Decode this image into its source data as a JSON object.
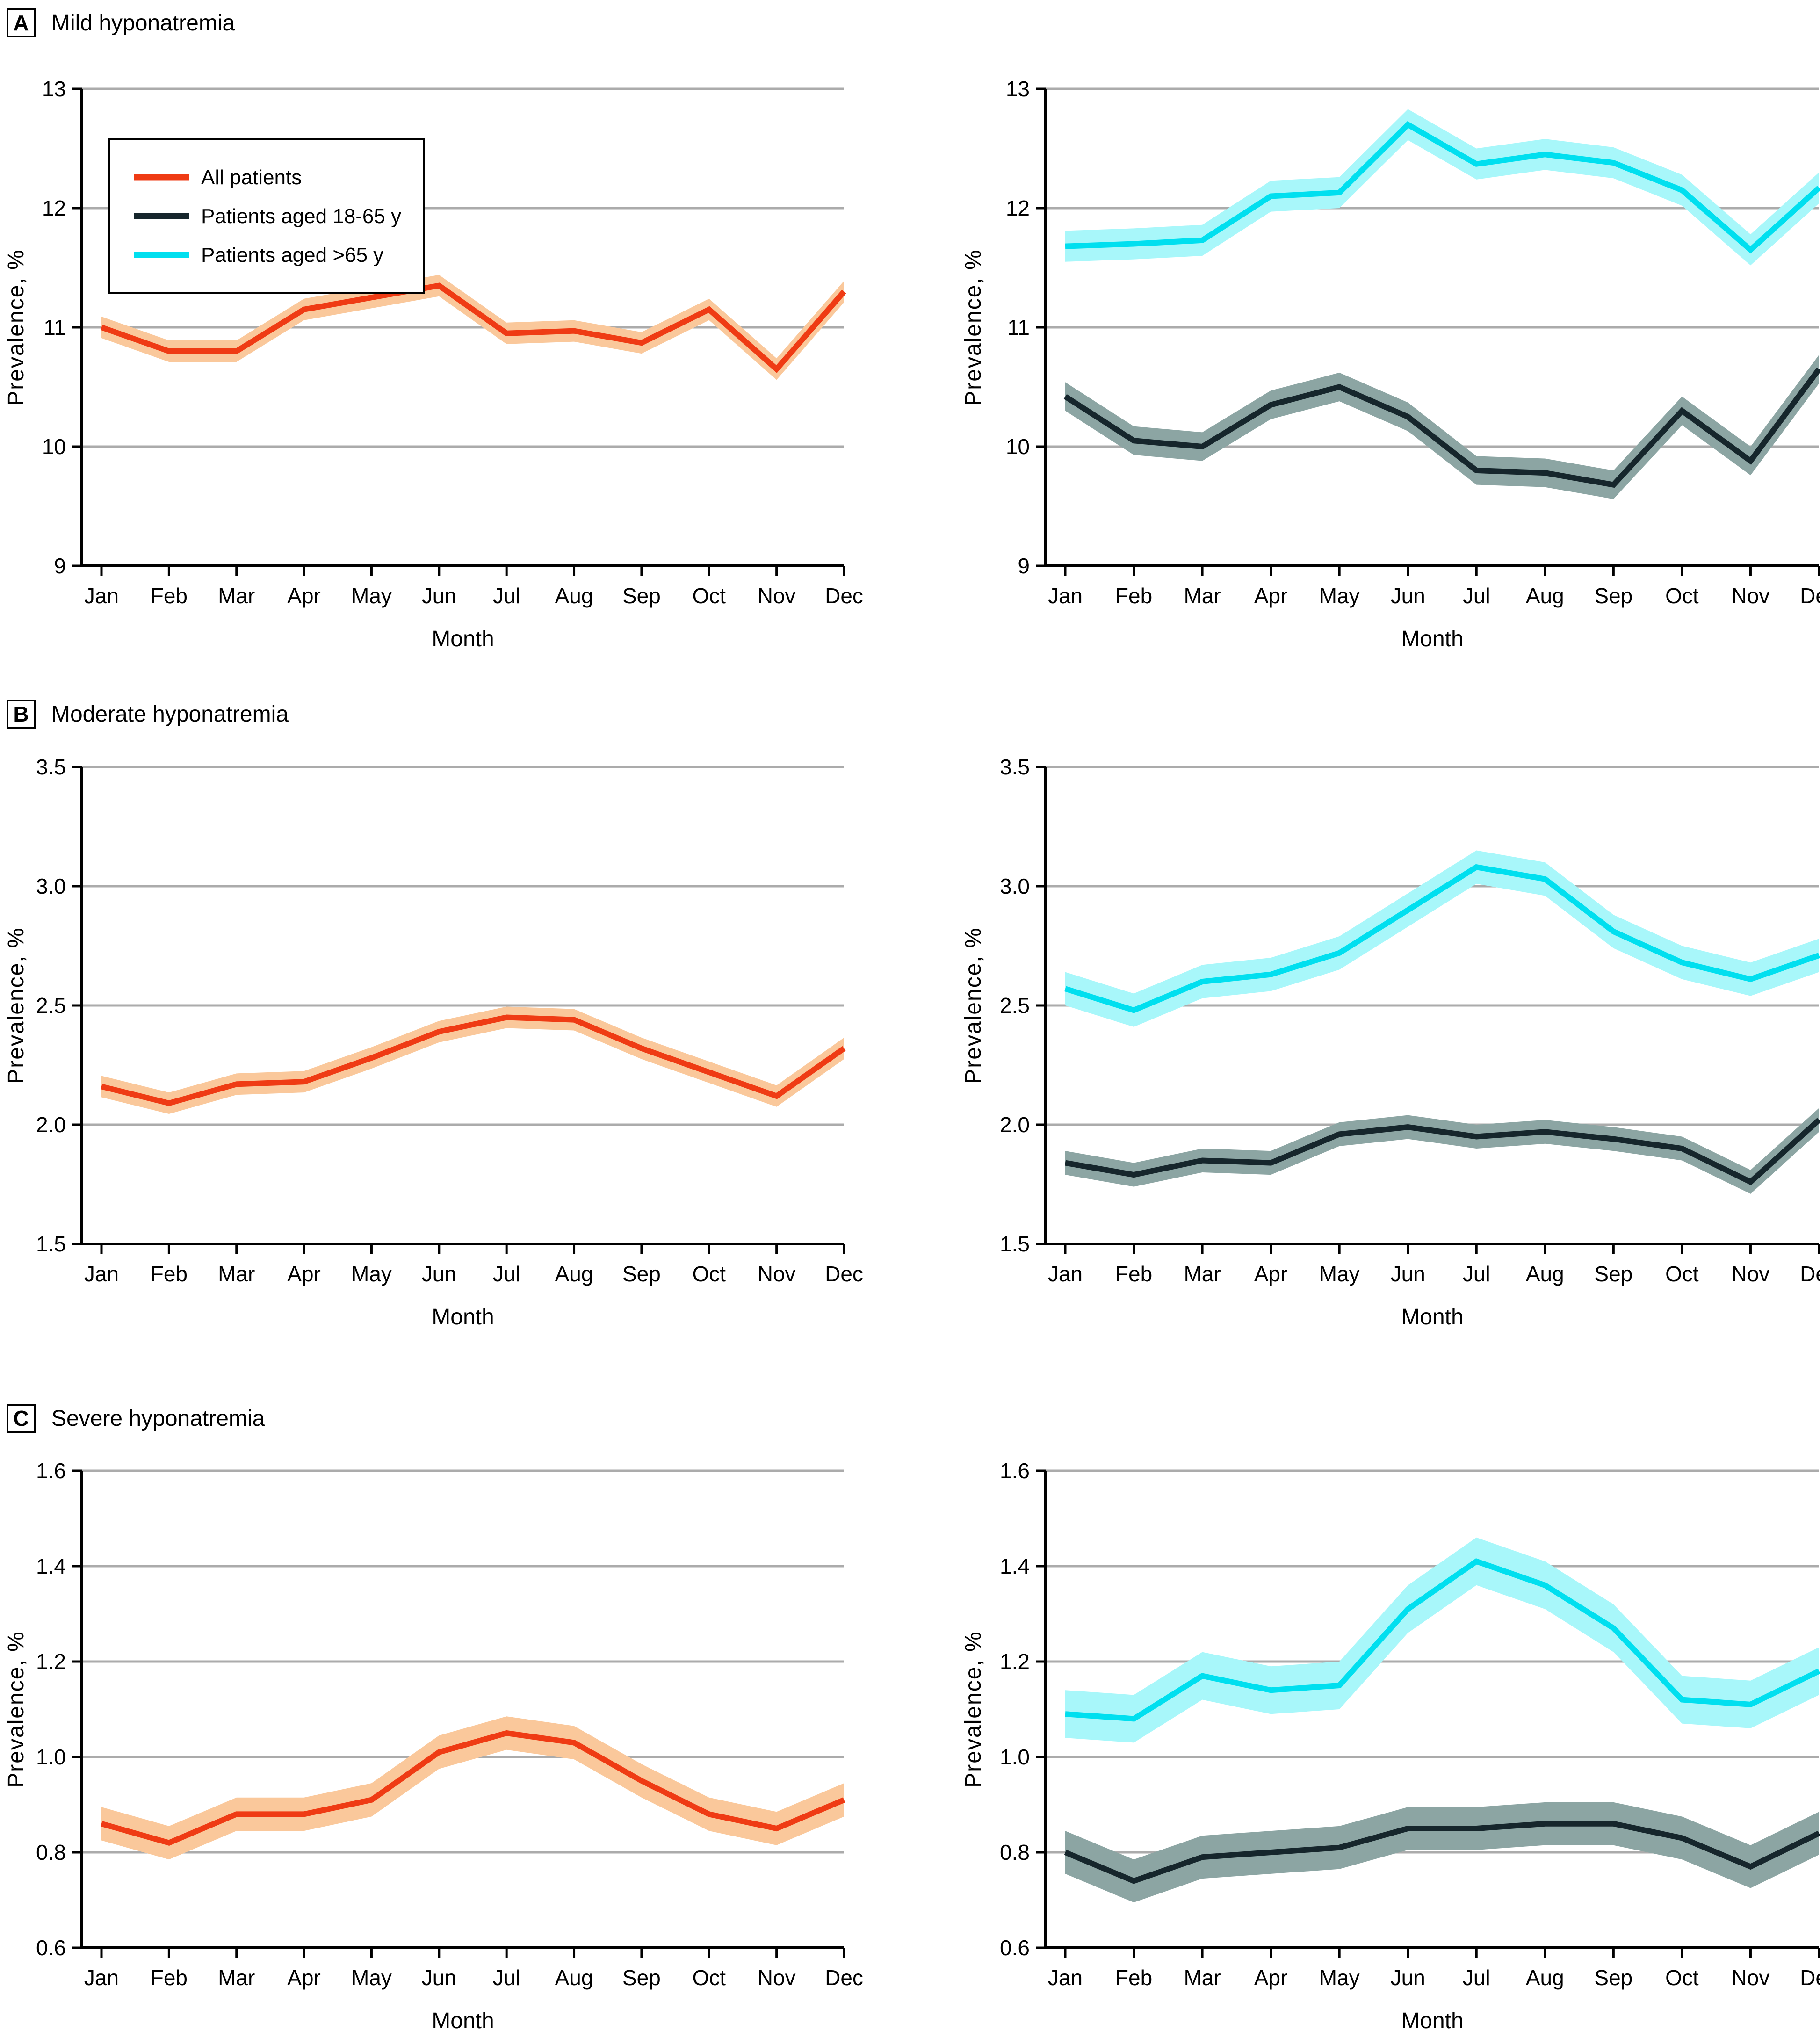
{
  "figure": {
    "panels": [
      {
        "letter": "A",
        "title": "Mild hyponatremia"
      },
      {
        "letter": "B",
        "title": "Moderate hyponatremia"
      },
      {
        "letter": "C",
        "title": "Severe hyponatremia"
      }
    ],
    "legend": {
      "items": [
        {
          "label": "All patients",
          "color": "#EF3B14"
        },
        {
          "label": "Patients aged 18-65 y",
          "color": "#16262C"
        },
        {
          "label": "Patients aged >65 y",
          "color": "#00DFEF"
        }
      ]
    },
    "colors": {
      "all_patients_line": "#EF3B14",
      "all_patients_band": "#FAC89B",
      "aged_18_65_line": "#16262C",
      "aged_18_65_band": "#8CA5A3",
      "aged_over_65_line": "#00DFEF",
      "aged_over_65_band": "#A8F7FA",
      "gridline": "#ABABAB",
      "axis": "#000000"
    }
  },
  "chart_data": [
    {
      "id": "mild-all-patients",
      "panel": "A",
      "position": "left",
      "type": "line",
      "title": "Mild hyponatremia",
      "xlabel": "Month",
      "ylabel": "Prevalence, %",
      "categories": [
        "Jan",
        "Feb",
        "Mar",
        "Apr",
        "May",
        "Jun",
        "Jul",
        "Aug",
        "Sep",
        "Oct",
        "Nov",
        "Dec"
      ],
      "ylim": [
        9,
        13
      ],
      "ytick_values": [
        9,
        10,
        11,
        12,
        13
      ],
      "ytick_labels": [
        "9",
        "10",
        "11",
        "12",
        "13"
      ],
      "grid": true,
      "legend": true,
      "series": [
        {
          "name": "All patients",
          "color": "#EF3B14",
          "band_color": "#FAC89B",
          "ci_halfwidth": 0.09,
          "values": [
            11.0,
            10.8,
            10.8,
            11.15,
            11.25,
            11.35,
            10.95,
            10.97,
            10.87,
            11.15,
            10.65,
            11.3
          ]
        }
      ]
    },
    {
      "id": "mild-by-age",
      "panel": "A",
      "position": "right",
      "type": "line",
      "title": "Mild hyponatremia",
      "xlabel": "Month",
      "ylabel": "Prevalence, %",
      "categories": [
        "Jan",
        "Feb",
        "Mar",
        "Apr",
        "May",
        "Jun",
        "Jul",
        "Aug",
        "Sep",
        "Oct",
        "Nov",
        "Dec"
      ],
      "ylim": [
        9,
        13
      ],
      "ytick_values": [
        9,
        10,
        11,
        12,
        13
      ],
      "ytick_labels": [
        "9",
        "10",
        "11",
        "12",
        "13"
      ],
      "grid": true,
      "legend": false,
      "series": [
        {
          "name": "Patients aged 18-65 y",
          "color": "#16262C",
          "band_color": "#8CA5A3",
          "ci_halfwidth": 0.12,
          "values": [
            10.42,
            10.05,
            10.0,
            10.35,
            10.5,
            10.25,
            9.8,
            9.78,
            9.68,
            10.3,
            9.88,
            10.65
          ]
        },
        {
          "name": "Patients aged >65 y",
          "color": "#00DFEF",
          "band_color": "#A8F7FA",
          "ci_halfwidth": 0.13,
          "values": [
            11.68,
            11.7,
            11.73,
            12.1,
            12.13,
            12.7,
            12.37,
            12.45,
            12.38,
            12.15,
            11.65,
            12.17
          ]
        }
      ]
    },
    {
      "id": "moderate-all-patients",
      "panel": "B",
      "position": "left",
      "type": "line",
      "title": "Moderate hyponatremia",
      "xlabel": "Month",
      "ylabel": "Prevalence, %",
      "categories": [
        "Jan",
        "Feb",
        "Mar",
        "Apr",
        "May",
        "Jun",
        "Jul",
        "Aug",
        "Sep",
        "Oct",
        "Nov",
        "Dec"
      ],
      "ylim": [
        1.5,
        3.5
      ],
      "ytick_values": [
        1.5,
        2.0,
        2.5,
        3.0,
        3.5
      ],
      "ytick_labels": [
        "1.5",
        "2.0",
        "2.5",
        "3.0",
        "3.5"
      ],
      "grid": true,
      "legend": false,
      "series": [
        {
          "name": "All patients",
          "color": "#EF3B14",
          "band_color": "#FAC89B",
          "ci_halfwidth": 0.045,
          "values": [
            2.16,
            2.09,
            2.17,
            2.18,
            2.28,
            2.39,
            2.45,
            2.44,
            2.32,
            2.22,
            2.12,
            2.32
          ]
        }
      ]
    },
    {
      "id": "moderate-by-age",
      "panel": "B",
      "position": "right",
      "type": "line",
      "title": "Moderate hyponatremia",
      "xlabel": "Month",
      "ylabel": "Prevalence, %",
      "categories": [
        "Jan",
        "Feb",
        "Mar",
        "Apr",
        "May",
        "Jun",
        "Jul",
        "Aug",
        "Sep",
        "Oct",
        "Nov",
        "Dec"
      ],
      "ylim": [
        1.5,
        3.5
      ],
      "ytick_values": [
        1.5,
        2.0,
        2.5,
        3.0,
        3.5
      ],
      "ytick_labels": [
        "1.5",
        "2.0",
        "2.5",
        "3.0",
        "3.5"
      ],
      "grid": true,
      "legend": false,
      "series": [
        {
          "name": "Patients aged 18-65 y",
          "color": "#16262C",
          "band_color": "#8CA5A3",
          "ci_halfwidth": 0.05,
          "values": [
            1.84,
            1.79,
            1.85,
            1.84,
            1.96,
            1.99,
            1.95,
            1.97,
            1.94,
            1.9,
            1.76,
            2.02
          ]
        },
        {
          "name": "Patients aged >65 y",
          "color": "#00DFEF",
          "band_color": "#A8F7FA",
          "ci_halfwidth": 0.07,
          "values": [
            2.57,
            2.48,
            2.6,
            2.63,
            2.72,
            2.9,
            3.08,
            3.03,
            2.81,
            2.68,
            2.61,
            2.71
          ]
        }
      ]
    },
    {
      "id": "severe-all-patients",
      "panel": "C",
      "position": "left",
      "type": "line",
      "title": "Severe hyponatremia",
      "xlabel": "Month",
      "ylabel": "Prevalence, %",
      "categories": [
        "Jan",
        "Feb",
        "Mar",
        "Apr",
        "May",
        "Jun",
        "Jul",
        "Aug",
        "Sep",
        "Oct",
        "Nov",
        "Dec"
      ],
      "ylim": [
        0.6,
        1.6
      ],
      "ytick_values": [
        0.6,
        0.8,
        1.0,
        1.2,
        1.4,
        1.6
      ],
      "ytick_labels": [
        "0.6",
        "0.8",
        "1.0",
        "1.2",
        "1.4",
        "1.6"
      ],
      "grid": true,
      "legend": false,
      "series": [
        {
          "name": "All patients",
          "color": "#EF3B14",
          "band_color": "#FAC89B",
          "ci_halfwidth": 0.035,
          "values": [
            0.86,
            0.82,
            0.88,
            0.88,
            0.91,
            1.01,
            1.05,
            1.03,
            0.95,
            0.88,
            0.85,
            0.91
          ]
        }
      ]
    },
    {
      "id": "severe-by-age",
      "panel": "C",
      "position": "right",
      "type": "line",
      "title": "Severe hyponatremia",
      "xlabel": "Month",
      "ylabel": "Prevalence, %",
      "categories": [
        "Jan",
        "Feb",
        "Mar",
        "Apr",
        "May",
        "Jun",
        "Jul",
        "Aug",
        "Sep",
        "Oct",
        "Nov",
        "Dec"
      ],
      "ylim": [
        0.6,
        1.6
      ],
      "ytick_values": [
        0.6,
        0.8,
        1.0,
        1.2,
        1.4,
        1.6
      ],
      "ytick_labels": [
        "0.6",
        "0.8",
        "1.0",
        "1.2",
        "1.4",
        "1.6"
      ],
      "grid": true,
      "legend": false,
      "series": [
        {
          "name": "Patients aged 18-65 y",
          "color": "#16262C",
          "band_color": "#8CA5A3",
          "ci_halfwidth": 0.045,
          "values": [
            0.8,
            0.74,
            0.79,
            0.8,
            0.81,
            0.85,
            0.85,
            0.86,
            0.86,
            0.83,
            0.77,
            0.84
          ]
        },
        {
          "name": "Patients aged >65 y",
          "color": "#00DFEF",
          "band_color": "#A8F7FA",
          "ci_halfwidth": 0.05,
          "values": [
            1.09,
            1.08,
            1.17,
            1.14,
            1.15,
            1.31,
            1.41,
            1.36,
            1.27,
            1.12,
            1.11,
            1.18
          ]
        }
      ]
    }
  ]
}
